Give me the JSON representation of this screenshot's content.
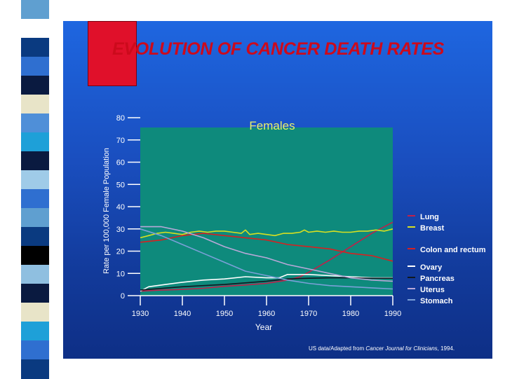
{
  "slide": {
    "title": "EVOLUTION OF CANCER DEATH RATES",
    "footer_prefix": "US data/Adapted from ",
    "footer_source": "Cancer Journal for Clinicians",
    "footer_suffix": ", 1994."
  },
  "colors": {
    "panel": "#1a4fc0",
    "plot_bg": "#0e8a7c",
    "title": "#cc0a1c",
    "red_block": "#e0102a",
    "stripe": [
      "#5f9fd0",
      "#ffffff",
      "#0a3a80",
      "#2f6fd0",
      "#0a1a40",
      "#e8e4c8",
      "#4f8fd8",
      "#1ea0d8",
      "#0a1a40",
      "#9fcbe8",
      "#2f6fd0",
      "#5f9fd0",
      "#0a3a80",
      "#000000",
      "#8fbfe0",
      "#0a1a40",
      "#e8e4c8",
      "#1ea0d8",
      "#2f6fd0",
      "#0a3a80"
    ]
  },
  "chart_data": {
    "type": "line",
    "title": "Females",
    "xlabel": "Year",
    "ylabel": "Rate per 100,000 Female Population",
    "xlim": [
      1930,
      1990
    ],
    "ylim": [
      0,
      80
    ],
    "xticks": [
      "1930",
      "1940",
      "1950",
      "1960",
      "1970",
      "1980",
      "1990"
    ],
    "yticks": [
      "0",
      "10",
      "20",
      "30",
      "40",
      "50",
      "60",
      "70",
      "80"
    ],
    "grid": false,
    "legend_position": "right",
    "series": [
      {
        "name": "Lung",
        "color": "#c0204a",
        "x": [
          1930,
          1935,
          1940,
          1945,
          1950,
          1955,
          1960,
          1965,
          1968,
          1970,
          1975,
          1980,
          1985,
          1990
        ],
        "values": [
          2,
          2.5,
          2.8,
          3.3,
          4.2,
          4.8,
          5.5,
          7,
          8.5,
          10.5,
          16,
          22,
          28,
          33
        ]
      },
      {
        "name": "Breast",
        "color": "#d8e020",
        "x": [
          1930,
          1932,
          1934,
          1936,
          1938,
          1940,
          1942,
          1944,
          1946,
          1948,
          1950,
          1952,
          1954,
          1955,
          1956,
          1958,
          1960,
          1962,
          1964,
          1966,
          1968,
          1969,
          1970,
          1972,
          1974,
          1976,
          1978,
          1980,
          1982,
          1984,
          1986,
          1988,
          1990
        ],
        "values": [
          26,
          27,
          28,
          28.5,
          28,
          27.5,
          28.5,
          29,
          28.5,
          29,
          29,
          28.5,
          28,
          29.5,
          27.5,
          28,
          27.5,
          27,
          28,
          28,
          28.5,
          29.5,
          28.5,
          29,
          28.5,
          29,
          28.5,
          28.5,
          29,
          29,
          29.5,
          29,
          30
        ]
      },
      {
        "name": "Colon and rectum",
        "color": "#d82020",
        "x": [
          1930,
          1935,
          1940,
          1945,
          1950,
          1955,
          1960,
          1965,
          1970,
          1975,
          1980,
          1985,
          1990
        ],
        "values": [
          24,
          25,
          27,
          28,
          27,
          26,
          25,
          23,
          22,
          21,
          19,
          18,
          15.5
        ]
      },
      {
        "name": "Ovary",
        "color": "#ffffff",
        "x": [
          1930,
          1932,
          1936,
          1940,
          1945,
          1950,
          1955,
          1960,
          1963,
          1965,
          1970,
          1975,
          1980,
          1985,
          1990
        ],
        "values": [
          2,
          4,
          5,
          6,
          7,
          7.5,
          8.5,
          8,
          8,
          9.5,
          9.5,
          9,
          8.5,
          8,
          8
        ]
      },
      {
        "name": "Pancreas",
        "color": "#101820",
        "x": [
          1930,
          1940,
          1950,
          1960,
          1965,
          1970,
          1975,
          1980,
          1985,
          1990
        ],
        "values": [
          2.5,
          4,
          5,
          6.5,
          7.5,
          7.8,
          8,
          8,
          7.8,
          7.8
        ]
      },
      {
        "name": "Uterus",
        "color": "#b8a8d8",
        "x": [
          1930,
          1935,
          1940,
          1945,
          1950,
          1955,
          1960,
          1965,
          1970,
          1975,
          1980,
          1985,
          1990
        ],
        "values": [
          31,
          31,
          29,
          26,
          22,
          19,
          17,
          14,
          12,
          10,
          8,
          7,
          6.5
        ]
      },
      {
        "name": "Stomach",
        "color": "#7aa0d8",
        "x": [
          1930,
          1935,
          1940,
          1945,
          1950,
          1955,
          1960,
          1965,
          1970,
          1975,
          1980,
          1985,
          1990
        ],
        "values": [
          30,
          27,
          23,
          19,
          15,
          11,
          9,
          7,
          5.5,
          4.5,
          4,
          3.5,
          3
        ]
      }
    ]
  }
}
